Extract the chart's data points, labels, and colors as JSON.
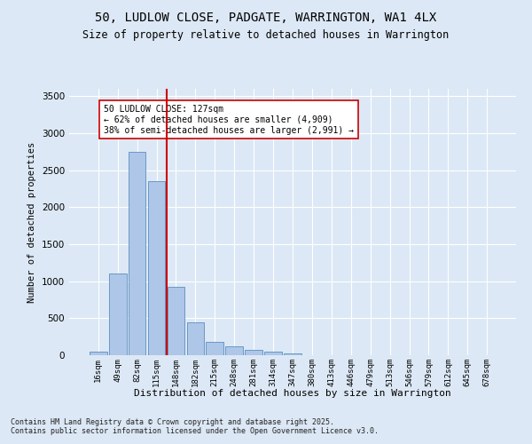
{
  "title_line1": "50, LUDLOW CLOSE, PADGATE, WARRINGTON, WA1 4LX",
  "title_line2": "Size of property relative to detached houses in Warrington",
  "xlabel": "Distribution of detached houses by size in Warrington",
  "ylabel": "Number of detached properties",
  "categories": [
    "16sqm",
    "49sqm",
    "82sqm",
    "115sqm",
    "148sqm",
    "182sqm",
    "215sqm",
    "248sqm",
    "281sqm",
    "314sqm",
    "347sqm",
    "380sqm",
    "413sqm",
    "446sqm",
    "479sqm",
    "513sqm",
    "546sqm",
    "579sqm",
    "612sqm",
    "645sqm",
    "678sqm"
  ],
  "values": [
    50,
    1100,
    2750,
    2350,
    930,
    440,
    175,
    120,
    75,
    50,
    30,
    0,
    0,
    0,
    0,
    0,
    0,
    0,
    0,
    0,
    0
  ],
  "bar_color": "#aec6e8",
  "bar_edge_color": "#5a8fc0",
  "vline_color": "#cc0000",
  "annotation_box_text": "50 LUDLOW CLOSE: 127sqm\n← 62% of detached houses are smaller (4,909)\n38% of semi-detached houses are larger (2,991) →",
  "box_edge_color": "#cc0000",
  "background_color": "#dce8f5",
  "plot_bg_color": "#dce8f5",
  "ylim": [
    0,
    3600
  ],
  "yticks": [
    0,
    500,
    1000,
    1500,
    2000,
    2500,
    3000,
    3500
  ],
  "footnote": "Contains HM Land Registry data © Crown copyright and database right 2025.\nContains public sector information licensed under the Open Government Licence v3.0.",
  "title_fontsize": 10,
  "subtitle_fontsize": 8.5,
  "annotation_fontsize": 7,
  "footnote_fontsize": 6
}
